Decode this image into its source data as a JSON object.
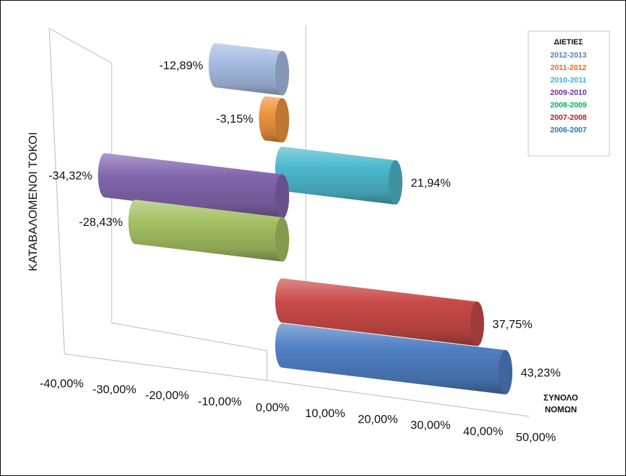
{
  "chart_data": {
    "type": "bar",
    "orientation": "horizontal-3d-cylinder",
    "title": "",
    "ylabel": "ΚΑΤΑΒΑΛΟΜΕΝΟΙ ΤΟΚΟΙ",
    "category": "ΣΥΝΟΛΟ ΝΟΜΩΝ",
    "category_lines": [
      "ΣΥΝΟΛΟ",
      "ΝΟΜΩΝ"
    ],
    "xlim": [
      -40,
      50
    ],
    "x_ticks": [
      "-40,00%",
      "-30,00%",
      "-20,00%",
      "-10,00%",
      "0,00%",
      "10,00%",
      "20,00%",
      "30,00%",
      "40,00%",
      "50,00%"
    ],
    "legend": {
      "title": "ΔΙΕΤΙΕΣ",
      "placement": "top-right"
    },
    "series": [
      {
        "name": "2012-2013",
        "value": -12.89,
        "label": "-12,89%",
        "color": "#a8bde3"
      },
      {
        "name": "2011-2012",
        "value": -3.15,
        "label": "-3,15%",
        "color": "#f0953d"
      },
      {
        "name": "2010-2011",
        "value": 21.94,
        "label": "21,94%",
        "color": "#4db8cc"
      },
      {
        "name": "2009-2010",
        "value": -34.32,
        "label": "-34,32%",
        "color": "#8265ad"
      },
      {
        "name": "2008-2009",
        "value": -28.43,
        "label": "-28,43%",
        "color": "#a4c063"
      },
      {
        "name": "2007-2008",
        "value": 37.75,
        "label": "37,75%",
        "color": "#c94a48"
      },
      {
        "name": "2006-2007",
        "value": 43.23,
        "label": "43,23%",
        "color": "#4f7fc3"
      }
    ],
    "legend_colors": [
      "#4f81bd",
      "#e46c0a",
      "#31b6d0",
      "#7030a0",
      "#00b050",
      "#c0181a",
      "#1f77b4"
    ]
  }
}
